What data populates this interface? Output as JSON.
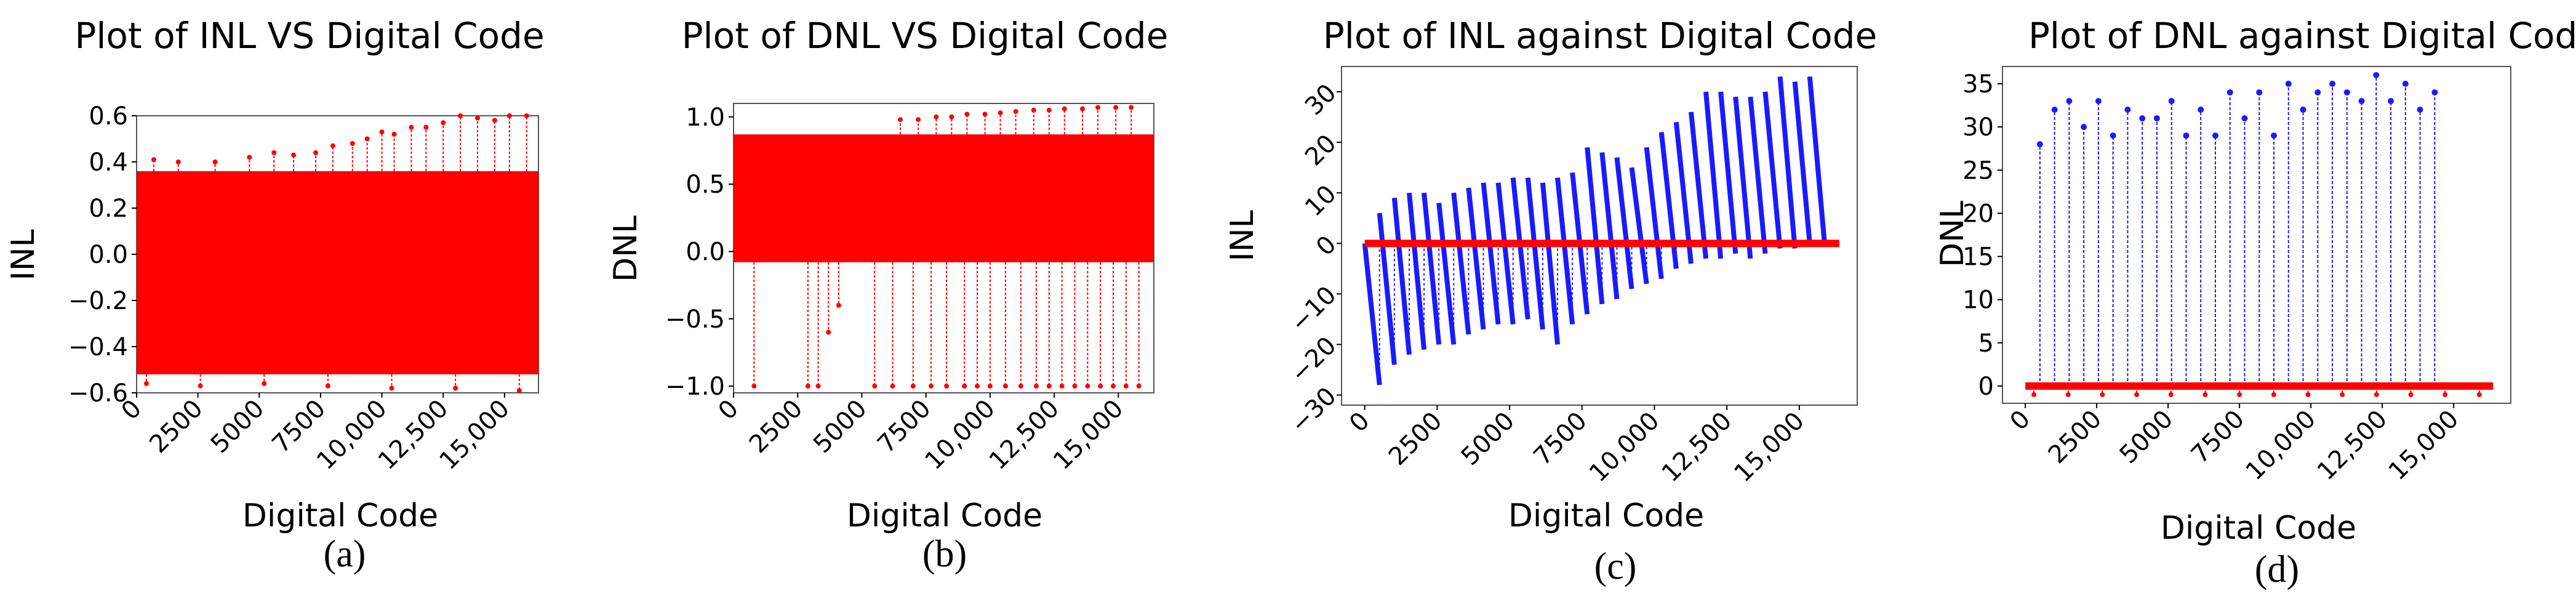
{
  "chart_data": [
    {
      "type": "line",
      "title": "Plot of INL VS Digital Code",
      "xlabel": "Digital Code",
      "ylabel": "INL",
      "caption": "(a)",
      "xlim": [
        0,
        16383
      ],
      "ylim": [
        -0.6,
        0.6
      ],
      "xticks": [
        0,
        2500,
        5000,
        7500,
        10000,
        12500,
        15000
      ],
      "xtick_labels": [
        "0",
        "2500",
        "5000",
        "7500",
        "10,000",
        "12,500",
        "15,000"
      ],
      "yticks": [
        0.6,
        0.4,
        0.2,
        0.0,
        -0.2,
        -0.4,
        -0.6
      ],
      "ytick_labels": [
        "0.6",
        "0.4",
        "0.2",
        "0.0",
        "−0.2",
        "−0.4",
        "−0.6"
      ],
      "series": [
        {
          "color": "#ff0000",
          "band": {
            "x_range": [
              0,
              16383
            ],
            "upper": 0.36,
            "lower": -0.52
          },
          "spikes": [
            [
              700,
              0.41
            ],
            [
              1700,
              0.4
            ],
            [
              3200,
              0.4
            ],
            [
              4600,
              0.42
            ],
            [
              5600,
              0.44
            ],
            [
              6400,
              0.43
            ],
            [
              7300,
              0.44
            ],
            [
              8000,
              0.47
            ],
            [
              8800,
              0.48
            ],
            [
              9400,
              0.5
            ],
            [
              10000,
              0.53
            ],
            [
              10500,
              0.52
            ],
            [
              11200,
              0.55
            ],
            [
              11800,
              0.55
            ],
            [
              12500,
              0.57
            ],
            [
              13200,
              0.6
            ],
            [
              13900,
              0.59
            ],
            [
              14600,
              0.58
            ],
            [
              15200,
              0.6
            ],
            [
              15900,
              0.6
            ]
          ],
          "dips": [
            [
              400,
              -0.56
            ],
            [
              2600,
              -0.57
            ],
            [
              5200,
              -0.56
            ],
            [
              7800,
              -0.57
            ],
            [
              10400,
              -0.58
            ],
            [
              13000,
              -0.58
            ],
            [
              15600,
              -0.59
            ]
          ]
        }
      ]
    },
    {
      "type": "line",
      "title": "Plot of DNL VS Digital Code",
      "xlabel": "Digital Code",
      "ylabel": "DNL",
      "caption": "(b)",
      "xlim": [
        0,
        16383
      ],
      "ylim": [
        -1.05,
        1.1
      ],
      "xticks": [
        0,
        2500,
        5000,
        7500,
        10000,
        12500,
        15000
      ],
      "xtick_labels": [
        "0",
        "2500",
        "5000",
        "7500",
        "10,000",
        "12,500",
        "15,000"
      ],
      "yticks": [
        1.0,
        0.5,
        0.0,
        -0.5,
        -1.0
      ],
      "ytick_labels": [
        "1.0",
        "0.5",
        "0.0",
        "−0.5",
        "−1.0"
      ],
      "series": [
        {
          "color": "#ff0000",
          "band": {
            "x_range": [
              0,
              16383
            ],
            "upper": 0.87,
            "lower": -0.08
          },
          "spikes": [
            [
              6500,
              0.98
            ],
            [
              7200,
              0.98
            ],
            [
              7900,
              1.0
            ],
            [
              8500,
              1.0
            ],
            [
              9100,
              1.02
            ],
            [
              9800,
              1.02
            ],
            [
              10400,
              1.03
            ],
            [
              11000,
              1.04
            ],
            [
              11700,
              1.05
            ],
            [
              12300,
              1.05
            ],
            [
              12900,
              1.06
            ],
            [
              13600,
              1.06
            ],
            [
              14200,
              1.07
            ],
            [
              14900,
              1.07
            ],
            [
              15500,
              1.07
            ]
          ],
          "dips": [
            [
              800,
              -1.0
            ],
            [
              2900,
              -1.0
            ],
            [
              3300,
              -1.0
            ],
            [
              3700,
              -0.6
            ],
            [
              4100,
              -0.4
            ],
            [
              5500,
              -1.0
            ],
            [
              6200,
              -1.0
            ],
            [
              7000,
              -1.0
            ],
            [
              7700,
              -1.0
            ],
            [
              8300,
              -1.0
            ],
            [
              9000,
              -1.0
            ],
            [
              9500,
              -1.0
            ],
            [
              10000,
              -1.0
            ],
            [
              10600,
              -1.0
            ],
            [
              11200,
              -1.0
            ],
            [
              11800,
              -1.0
            ],
            [
              12300,
              -1.0
            ],
            [
              12800,
              -1.0
            ],
            [
              13300,
              -1.0
            ],
            [
              13800,
              -1.0
            ],
            [
              14300,
              -1.0
            ],
            [
              14800,
              -1.0
            ],
            [
              15300,
              -1.0
            ],
            [
              15800,
              -1.0
            ]
          ]
        }
      ]
    },
    {
      "type": "line",
      "title": "Plot of INL against Digital Code",
      "xlabel": "Digital Code",
      "ylabel": "INL",
      "caption": "(c)",
      "xlim": [
        -800,
        17000
      ],
      "ylim": [
        -32,
        35
      ],
      "xticks": [
        0,
        2500,
        5000,
        7500,
        10000,
        12500,
        15000
      ],
      "xtick_labels": [
        "0",
        "2500",
        "5000",
        "7500",
        "10,000",
        "12,500",
        "15,000"
      ],
      "yticks": [
        30,
        20,
        10,
        0,
        -10,
        -20,
        -30
      ],
      "ytick_labels": [
        "30",
        "20",
        "10",
        "0",
        "−10",
        "−20",
        "−30"
      ],
      "series": [
        {
          "name": "",
          "color": "#1a1aff",
          "sawtooth": [
            [
              [
                0,
                0
              ],
              [
                512,
                -28
              ]
            ],
            [
              [
                512,
                6
              ],
              [
                1024,
                -24
              ]
            ],
            [
              [
                1024,
                9
              ],
              [
                1536,
                -22
              ]
            ],
            [
              [
                1536,
                10
              ],
              [
                2048,
                -21
              ]
            ],
            [
              [
                2048,
                10
              ],
              [
                2560,
                -20
              ]
            ],
            [
              [
                2560,
                8
              ],
              [
                3072,
                -20
              ]
            ],
            [
              [
                3072,
                10
              ],
              [
                3584,
                -18
              ]
            ],
            [
              [
                3584,
                11
              ],
              [
                4096,
                -17
              ]
            ],
            [
              [
                4096,
                12
              ],
              [
                4608,
                -16
              ]
            ],
            [
              [
                4608,
                12
              ],
              [
                5120,
                -16
              ]
            ],
            [
              [
                5120,
                13
              ],
              [
                5632,
                -15
              ]
            ],
            [
              [
                5632,
                13
              ],
              [
                6144,
                -17
              ]
            ],
            [
              [
                6144,
                12
              ],
              [
                6656,
                -20
              ]
            ],
            [
              [
                6656,
                13
              ],
              [
                7168,
                -16
              ]
            ],
            [
              [
                7168,
                14
              ],
              [
                7680,
                -14
              ]
            ],
            [
              [
                7680,
                19
              ],
              [
                8192,
                -12
              ]
            ],
            [
              [
                8192,
                18
              ],
              [
                8704,
                -11
              ]
            ],
            [
              [
                8704,
                17
              ],
              [
                9216,
                -9
              ]
            ],
            [
              [
                9216,
                15
              ],
              [
                9728,
                -8
              ]
            ],
            [
              [
                9728,
                19
              ],
              [
                10240,
                -7
              ]
            ],
            [
              [
                10240,
                22
              ],
              [
                10752,
                -5
              ]
            ],
            [
              [
                10752,
                24
              ],
              [
                11264,
                -4
              ]
            ],
            [
              [
                11264,
                26
              ],
              [
                11776,
                -3
              ]
            ],
            [
              [
                11776,
                30
              ],
              [
                12288,
                -3
              ]
            ],
            [
              [
                12288,
                30
              ],
              [
                12800,
                -2
              ]
            ],
            [
              [
                12800,
                29
              ],
              [
                13312,
                -3
              ]
            ],
            [
              [
                13312,
                29
              ],
              [
                13824,
                -2
              ]
            ],
            [
              [
                13824,
                30
              ],
              [
                14336,
                -1
              ]
            ],
            [
              [
                14336,
                33
              ],
              [
                14848,
                -1
              ]
            ],
            [
              [
                14848,
                32
              ],
              [
                15360,
                0
              ]
            ],
            [
              [
                15360,
                33
              ],
              [
                15872,
                0
              ]
            ]
          ]
        },
        {
          "name": "",
          "color": "#ff0000",
          "flat": {
            "x_range": [
              0,
              16383
            ],
            "value": 0
          }
        }
      ]
    },
    {
      "type": "line",
      "title": "Plot of DNL against Digital Code",
      "xlabel": "Digital Code",
      "ylabel": "DNL",
      "caption": "(d)",
      "xlim": [
        -800,
        17000
      ],
      "ylim": [
        -2,
        37
      ],
      "xticks": [
        0,
        2500,
        5000,
        7500,
        10000,
        12500,
        15000
      ],
      "xtick_labels": [
        "0",
        "2500",
        "5000",
        "7500",
        "10,000",
        "12,500",
        "15,000"
      ],
      "yticks": [
        35,
        30,
        25,
        20,
        15,
        10,
        5,
        0
      ],
      "ytick_labels": [
        "35",
        "30",
        "25",
        "20",
        "15",
        "10",
        "5",
        "0"
      ],
      "series": [
        {
          "color": "#1a1aff",
          "stems": [
            [
              512,
              28
            ],
            [
              1024,
              32
            ],
            [
              1536,
              33
            ],
            [
              2048,
              30
            ],
            [
              2560,
              33
            ],
            [
              3072,
              29
            ],
            [
              3584,
              32
            ],
            [
              4096,
              31
            ],
            [
              4608,
              31
            ],
            [
              5120,
              33
            ],
            [
              5632,
              29
            ],
            [
              6144,
              32
            ],
            [
              6656,
              29
            ],
            [
              7168,
              34
            ],
            [
              7680,
              31
            ],
            [
              8192,
              34
            ],
            [
              8704,
              29
            ],
            [
              9216,
              35
            ],
            [
              9728,
              32
            ],
            [
              10240,
              34
            ],
            [
              10752,
              35
            ],
            [
              11264,
              34
            ],
            [
              11776,
              33
            ],
            [
              12288,
              36
            ],
            [
              12800,
              33
            ],
            [
              13312,
              35
            ],
            [
              13824,
              32
            ],
            [
              14336,
              34
            ]
          ]
        },
        {
          "color": "#ff0000",
          "flat": {
            "x_range": [
              0,
              16383
            ],
            "value": 0
          },
          "dips": [
            [
              300,
              -1
            ],
            [
              1500,
              -1
            ],
            [
              2700,
              -1
            ],
            [
              3900,
              -1
            ],
            [
              5100,
              -1
            ],
            [
              6300,
              -1
            ],
            [
              7500,
              -1
            ],
            [
              8700,
              -1
            ],
            [
              9900,
              -1
            ],
            [
              11100,
              -1
            ],
            [
              12300,
              -1
            ],
            [
              13500,
              -1
            ],
            [
              14700,
              -1
            ],
            [
              15900,
              -1
            ]
          ]
        }
      ]
    }
  ]
}
